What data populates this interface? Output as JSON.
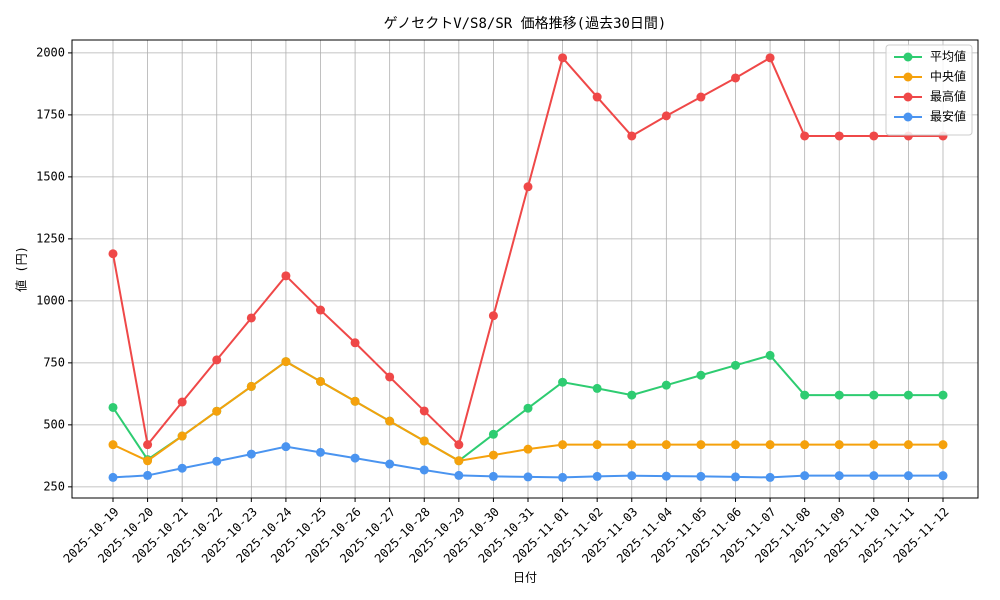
{
  "chart_data": {
    "type": "line",
    "title": "ゲノセクトV/S8/SR 価格推移(過去30日間)",
    "x_label": "日付",
    "y_label": "値 (円)",
    "categories": [
      "2025-10-19",
      "2025-10-20",
      "2025-10-21",
      "2025-10-22",
      "2025-10-23",
      "2025-10-24",
      "2025-10-25",
      "2025-10-26",
      "2025-10-27",
      "2025-10-28",
      "2025-10-29",
      "2025-10-30",
      "2025-10-31",
      "2025-11-01",
      "2025-11-02",
      "2025-11-03",
      "2025-11-04",
      "2025-11-05",
      "2025-11-06",
      "2025-11-07",
      "2025-11-08",
      "2025-11-09",
      "2025-11-10",
      "2025-11-11",
      "2025-11-12"
    ],
    "series": [
      {
        "name": "平均値",
        "color": "#2ecc71",
        "values": [
          570,
          360,
          455,
          555,
          655,
          755,
          675,
          595,
          515,
          435,
          355,
          462,
          567,
          672,
          647,
          620,
          660,
          700,
          740,
          780,
          620,
          620,
          620,
          620,
          620
        ]
      },
      {
        "name": "中央値",
        "color": "#f5a10c",
        "values": [
          420,
          355,
          455,
          555,
          655,
          755,
          675,
          595,
          515,
          435,
          355,
          378,
          402,
          420,
          420,
          420,
          420,
          420,
          420,
          420,
          420,
          420,
          420,
          420,
          420
        ]
      },
      {
        "name": "最高値",
        "color": "#ef4848",
        "values": [
          1190,
          420,
          592,
          762,
          931,
          1101,
          963,
          831,
          693,
          556,
          420,
          940,
          1460,
          1980,
          1822,
          1665,
          1746,
          1822,
          1899,
          1980,
          1665,
          1665,
          1665,
          1665,
          1665
        ]
      },
      {
        "name": "最安値",
        "color": "#4a94f0",
        "values": [
          288,
          296,
          325,
          353,
          382,
          412,
          389,
          366,
          342,
          318,
          296,
          292,
          290,
          288,
          292,
          295,
          293,
          292,
          290,
          288,
          295,
          295,
          295,
          295,
          295
        ]
      }
    ],
    "ylim": [
      205,
      2052
    ],
    "yticks": [
      250,
      500,
      750,
      1000,
      1250,
      1500,
      1750,
      2000
    ],
    "grid": true,
    "legend": "upper right"
  }
}
